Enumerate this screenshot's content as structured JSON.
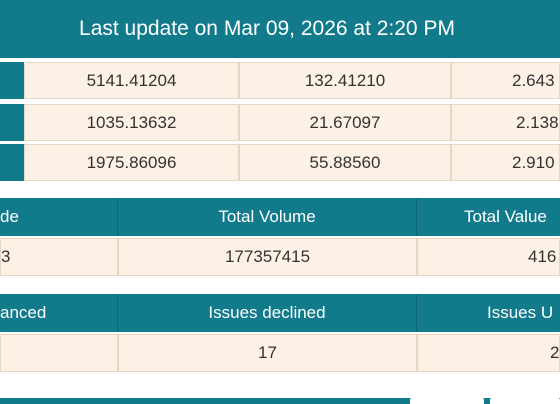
{
  "header": {
    "last_update": "Last update on Mar 09, 2026 at 2:20 PM"
  },
  "index_rows": [
    {
      "value": "5141.41204",
      "change": "132.41210",
      "percent": "2.643"
    },
    {
      "value": "1035.13632",
      "change": "21.67097",
      "percent": "2.138"
    },
    {
      "value": "1975.86096",
      "change": "55.88560",
      "percent": "2.910"
    }
  ],
  "trade_table": {
    "headers": [
      "de",
      "Total Volume",
      "Total Value"
    ],
    "values": [
      "3",
      "177357415",
      "416"
    ]
  },
  "issues_table": {
    "headers": [
      "anced",
      "Issues declined",
      "Issues U"
    ],
    "values": [
      "",
      "17",
      "2"
    ]
  },
  "colors": {
    "accent": "#117a8b",
    "cell_bg": "#fdf1e6",
    "cell_border": "#e6d6c6"
  }
}
